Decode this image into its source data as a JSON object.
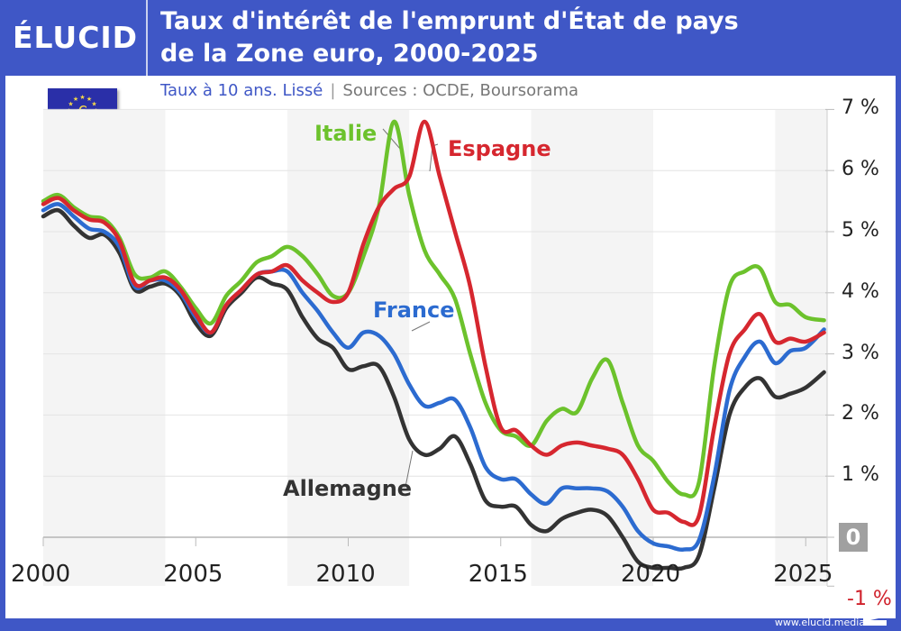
{
  "header": {
    "logo": "ÉLUCID",
    "title_line1": "Taux d'intérêt de l'emprunt d'État de pays",
    "title_line2": "de la Zone euro, 2000-2025",
    "subtitle": "Taux à 10 ans. Lissé",
    "separator": "|",
    "sources": "Sources : OCDE, Boursorama"
  },
  "footer": {
    "url": "www.elucid.media"
  },
  "colors": {
    "brand": "#3f57c6",
    "italie": "#6cc22c",
    "espagne": "#d6272f",
    "france": "#2c6bd0",
    "allemagne": "#333333",
    "negative": "#d0212b"
  },
  "axis": {
    "y_labels": [
      "7 %",
      "6 %",
      "5 %",
      "4 %",
      "3 %",
      "2 %",
      "1 %",
      "0",
      "-1 %"
    ],
    "x_labels": [
      "2000",
      "2005",
      "2010",
      "2015",
      "2020",
      "2025"
    ]
  },
  "labels": {
    "italie": "Italie",
    "espagne": "Espagne",
    "france": "France",
    "allemagne": "Allemagne"
  },
  "chart_data": {
    "type": "line",
    "title": "Taux d'intérêt de l'emprunt d'État de pays de la Zone euro, 2000-2025",
    "subtitle": "Taux à 10 ans. Lissé | Sources : OCDE, Boursorama",
    "xlabel": "",
    "ylabel": "",
    "xlim": [
      2000,
      2025.7
    ],
    "ylim": [
      -1,
      7
    ],
    "y_ticks": [
      -1,
      0,
      1,
      2,
      3,
      4,
      5,
      6,
      7
    ],
    "x_ticks": [
      2000,
      2005,
      2010,
      2015,
      2020,
      2025
    ],
    "grid": true,
    "legend": "inline labels",
    "x": [
      2000,
      2000.5,
      2001,
      2001.5,
      2002,
      2002.5,
      2003,
      2003.5,
      2004,
      2004.5,
      2005,
      2005.5,
      2006,
      2006.5,
      2007,
      2007.5,
      2008,
      2008.5,
      2009,
      2009.5,
      2010,
      2010.5,
      2011,
      2011.5,
      2012,
      2012.5,
      2013,
      2013.5,
      2014,
      2014.5,
      2015,
      2015.5,
      2016,
      2016.5,
      2017,
      2017.5,
      2018,
      2018.5,
      2019,
      2019.5,
      2020,
      2020.5,
      2021,
      2021.5,
      2022,
      2022.5,
      2023,
      2023.5,
      2024,
      2024.5,
      2025,
      2025.6
    ],
    "series": [
      {
        "name": "Italie",
        "color": "#6cc22c",
        "values": [
          5.5,
          5.6,
          5.4,
          5.25,
          5.2,
          4.9,
          4.3,
          4.25,
          4.35,
          4.1,
          3.75,
          3.5,
          3.95,
          4.2,
          4.5,
          4.6,
          4.75,
          4.6,
          4.3,
          3.95,
          4.0,
          4.6,
          5.4,
          6.8,
          5.6,
          4.7,
          4.3,
          3.9,
          3.0,
          2.2,
          1.75,
          1.65,
          1.5,
          1.9,
          2.1,
          2.05,
          2.6,
          2.9,
          2.2,
          1.5,
          1.25,
          0.9,
          0.7,
          0.9,
          2.8,
          4.1,
          4.35,
          4.4,
          3.85,
          3.8,
          3.6,
          3.55
        ]
      },
      {
        "name": "Espagne",
        "color": "#d6272f",
        "values": [
          5.45,
          5.55,
          5.35,
          5.2,
          5.15,
          4.85,
          4.15,
          4.2,
          4.25,
          4.05,
          3.65,
          3.35,
          3.8,
          4.05,
          4.3,
          4.35,
          4.45,
          4.2,
          4.0,
          3.85,
          4.0,
          4.8,
          5.4,
          5.7,
          5.9,
          6.8,
          5.9,
          5.0,
          4.1,
          2.8,
          1.8,
          1.75,
          1.5,
          1.35,
          1.5,
          1.55,
          1.5,
          1.45,
          1.35,
          0.95,
          0.45,
          0.4,
          0.25,
          0.35,
          1.8,
          3.0,
          3.4,
          3.65,
          3.2,
          3.25,
          3.2,
          3.35
        ]
      },
      {
        "name": "France",
        "color": "#2c6bd0",
        "values": [
          5.35,
          5.45,
          5.25,
          5.05,
          5.0,
          4.75,
          4.1,
          4.2,
          4.2,
          4.0,
          3.6,
          3.35,
          3.8,
          4.05,
          4.3,
          4.35,
          4.35,
          4.0,
          3.7,
          3.35,
          3.1,
          3.35,
          3.3,
          3.0,
          2.5,
          2.15,
          2.2,
          2.25,
          1.8,
          1.15,
          0.95,
          0.95,
          0.7,
          0.55,
          0.8,
          0.8,
          0.8,
          0.75,
          0.5,
          0.1,
          -0.1,
          -0.15,
          -0.2,
          -0.05,
          1.0,
          2.4,
          2.95,
          3.2,
          2.85,
          3.05,
          3.1,
          3.4
        ]
      },
      {
        "name": "Allemagne",
        "color": "#333333",
        "values": [
          5.25,
          5.35,
          5.1,
          4.9,
          4.95,
          4.65,
          4.05,
          4.1,
          4.15,
          3.95,
          3.5,
          3.3,
          3.75,
          4.0,
          4.25,
          4.15,
          4.05,
          3.6,
          3.25,
          3.1,
          2.75,
          2.8,
          2.8,
          2.3,
          1.6,
          1.35,
          1.45,
          1.65,
          1.2,
          0.6,
          0.5,
          0.5,
          0.2,
          0.1,
          0.3,
          0.4,
          0.45,
          0.35,
          0.0,
          -0.4,
          -0.5,
          -0.5,
          -0.5,
          -0.3,
          0.8,
          2.0,
          2.45,
          2.6,
          2.3,
          2.35,
          2.45,
          2.7
        ]
      }
    ],
    "annotations": [
      {
        "text": "Italie",
        "x": 2010.9,
        "y": 6.65
      },
      {
        "text": "Espagne",
        "x": 2013.5,
        "y": 6.3
      },
      {
        "text": "France",
        "x": 2011.8,
        "y": 3.75
      },
      {
        "text": "Allemagne",
        "x": 2007.8,
        "y": 0.8
      }
    ],
    "zero_highlight": true
  }
}
